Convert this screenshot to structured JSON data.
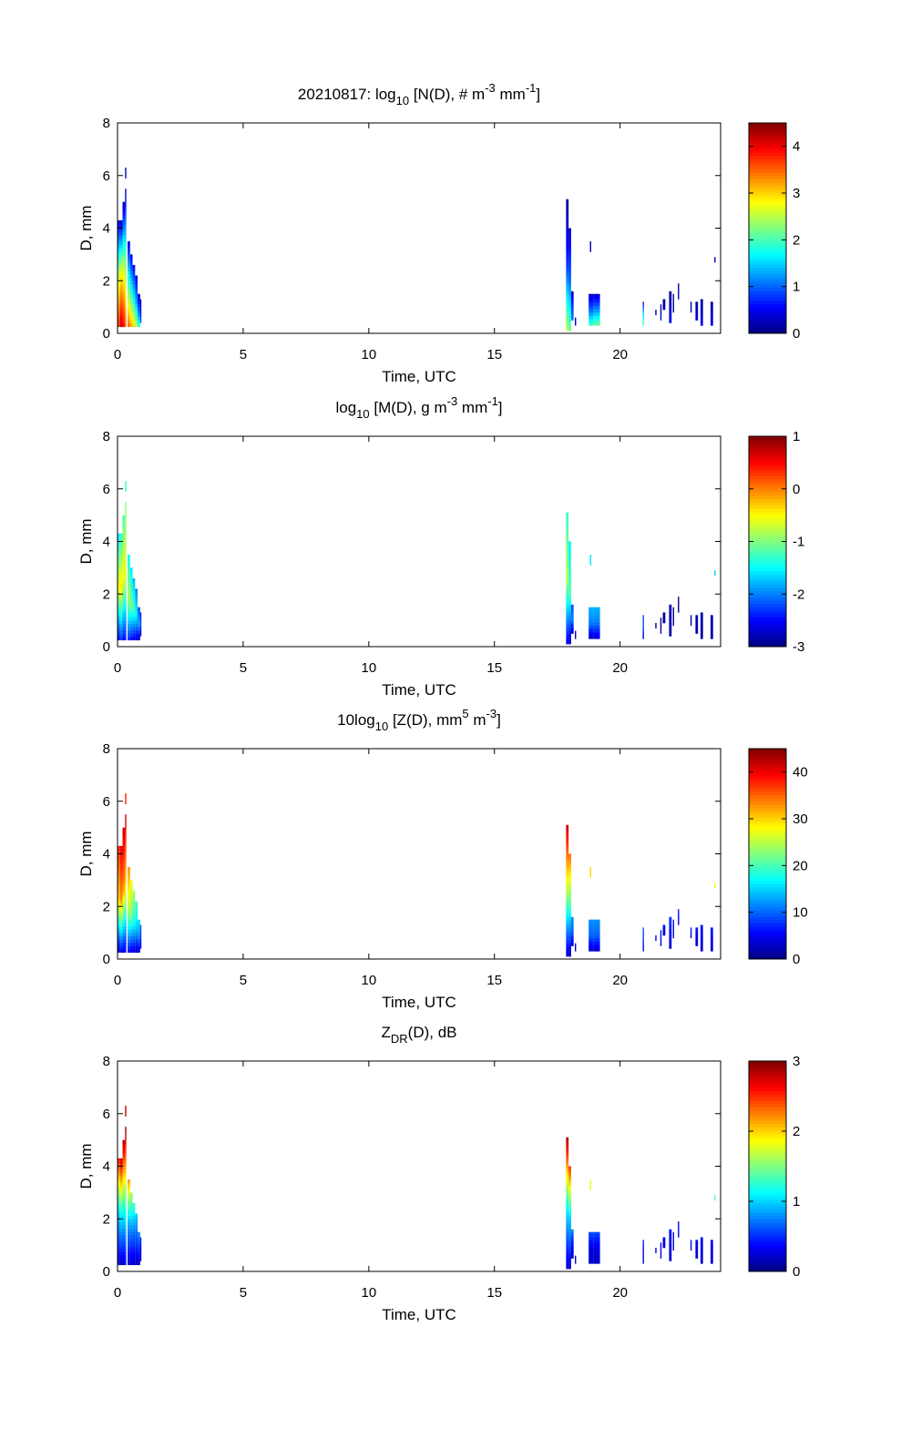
{
  "chart_data": {
    "type": "heatmap",
    "date": "20210817",
    "xlabel": "Time, UTC",
    "ylabel": "D, mm",
    "xlim": [
      0,
      24
    ],
    "ylim": [
      0,
      8
    ],
    "xticks": [
      0,
      5,
      10,
      15,
      20
    ],
    "yticks": [
      0,
      2,
      4,
      6,
      8
    ],
    "bin_size_mm": 0.125,
    "columns": [
      [
        0,
        0.1,
        0.25,
        4.3
      ],
      [
        0.1,
        0.2,
        0.25,
        4.3
      ],
      [
        0.2,
        0.3,
        0.25,
        5.0
      ],
      [
        0.3,
        0.35,
        0.25,
        5.5
      ],
      [
        0.3,
        0.35,
        5.9,
        6.3
      ],
      [
        0.4,
        0.5,
        0.25,
        3.5
      ],
      [
        0.5,
        0.6,
        0.25,
        3.0
      ],
      [
        0.6,
        0.7,
        0.25,
        2.6
      ],
      [
        0.7,
        0.8,
        0.25,
        2.2
      ],
      [
        0.8,
        0.9,
        0.25,
        1.5
      ],
      [
        0.9,
        0.95,
        0.4,
        1.3
      ],
      [
        17.85,
        17.95,
        0.1,
        5.1
      ],
      [
        17.95,
        18.05,
        0.1,
        4.0
      ],
      [
        18.05,
        18.15,
        0.5,
        1.6
      ],
      [
        18.2,
        18.25,
        0.3,
        0.6
      ],
      [
        18.8,
        18.85,
        3.1,
        3.5
      ],
      [
        18.75,
        18.95,
        0.3,
        1.5
      ],
      [
        18.95,
        19.2,
        0.3,
        1.5
      ],
      [
        20.9,
        20.95,
        0.3,
        1.2
      ],
      [
        21.4,
        21.45,
        0.7,
        0.9
      ],
      [
        21.6,
        21.65,
        0.5,
        1.1
      ],
      [
        21.7,
        21.8,
        0.9,
        1.3
      ],
      [
        21.95,
        22.05,
        0.4,
        1.6
      ],
      [
        22.1,
        22.15,
        0.8,
        1.5
      ],
      [
        22.3,
        22.35,
        1.3,
        1.9
      ],
      [
        22.8,
        22.85,
        0.8,
        1.2
      ],
      [
        23.0,
        23.1,
        0.5,
        1.2
      ],
      [
        23.2,
        23.3,
        0.3,
        1.3
      ],
      [
        23.6,
        23.7,
        0.3,
        1.2
      ],
      [
        23.75,
        23.8,
        2.7,
        2.9
      ]
    ],
    "panels": [
      {
        "title": [
          {
            "t": "20210817: log"
          },
          {
            "t": "10",
            "s": "sub"
          },
          {
            "t": " [N(D), # m"
          },
          {
            "t": "-3",
            "s": "sup"
          },
          {
            "t": " mm"
          },
          {
            "t": "-1",
            "s": "sup"
          },
          {
            "t": "]"
          }
        ],
        "clim": [
          0,
          4.5
        ],
        "cbar_ticks": [
          "0",
          "1",
          "2",
          "3",
          "4"
        ],
        "cbar_tick_values": [
          0,
          1,
          2,
          3,
          4
        ],
        "values": [
          [
            3.8,
            2.5,
            0.3
          ],
          [
            4.2,
            2.8,
            0.3
          ],
          [
            3.9,
            2.5,
            0.2
          ],
          [
            3.5,
            2,
            0.2
          ],
          [
            0.2,
            0.2,
            0.2
          ],
          [
            3.5,
            2,
            0.4
          ],
          [
            3.2,
            1.8,
            0.5
          ],
          [
            3,
            1.6,
            0.5
          ],
          [
            2.5,
            1.3,
            0.4
          ],
          [
            2,
            1,
            0.3
          ],
          [
            1,
            0.5,
            0.2
          ],
          [
            2.5,
            0.8,
            0.1
          ],
          [
            2.2,
            1,
            0.3
          ],
          [
            1.2,
            0.8,
            0.3
          ],
          [
            0.5,
            0.3,
            0.2
          ],
          [
            0.2,
            0.2,
            0.2
          ],
          [
            2,
            1,
            0.3
          ],
          [
            2.2,
            1.2,
            0.3
          ],
          [
            2,
            1.5,
            0.5
          ],
          [
            0.3,
            0.2,
            0.1
          ],
          [
            0.4,
            0.2,
            0.1
          ],
          [
            0.3,
            0.2,
            0.1
          ],
          [
            0.5,
            0.3,
            0.1
          ],
          [
            0.3,
            0.2,
            0.1
          ],
          [
            0.3,
            0.2,
            0.1
          ],
          [
            0.3,
            0.2,
            0.1
          ],
          [
            0.5,
            0.3,
            0.1
          ],
          [
            0.5,
            0.3,
            0.1
          ],
          [
            0.5,
            0.3,
            0.1
          ],
          [
            0.3,
            0.3,
            0.3
          ]
        ]
      },
      {
        "title": [
          {
            "t": "log"
          },
          {
            "t": "10",
            "s": "sub"
          },
          {
            "t": " [M(D), g m"
          },
          {
            "t": "-3",
            "s": "sup"
          },
          {
            "t": " mm"
          },
          {
            "t": "-1",
            "s": "sup"
          },
          {
            "t": "]"
          }
        ],
        "clim": [
          -3,
          1
        ],
        "cbar_ticks": [
          "-3",
          "-2",
          "-1",
          "0",
          "1"
        ],
        "cbar_tick_values": [
          -3,
          -2,
          -1,
          0,
          1
        ],
        "values": [
          [
            -2.6,
            -0.5,
            -1.6
          ],
          [
            -2.3,
            -0.4,
            -1.3
          ],
          [
            -2.5,
            -0.5,
            -1.2
          ],
          [
            -2.5,
            -0.6,
            -1.0
          ],
          [
            -1.3,
            -1.3,
            -1.3
          ],
          [
            -2.4,
            -0.8,
            -1.5
          ],
          [
            -2.5,
            -1,
            -1.6
          ],
          [
            -2.6,
            -1.2,
            -1.8
          ],
          [
            -2.7,
            -1.5,
            -2
          ],
          [
            -2.8,
            -1.8,
            -2.2
          ],
          [
            -2.8,
            -2.2,
            -2.5
          ],
          [
            -2.6,
            -0.8,
            -1.3
          ],
          [
            -2.8,
            -1.2,
            -1.5
          ],
          [
            -2.8,
            -2,
            -2.2
          ],
          [
            -2.9,
            -2.8,
            -2.8
          ],
          [
            -1.6,
            -1.6,
            -1.6
          ],
          [
            -2.8,
            -2,
            -1.8
          ],
          [
            -2.7,
            -2,
            -1.8
          ],
          [
            -2.8,
            -2.2,
            -2.2
          ],
          [
            -2.9,
            -2.9,
            -2.9
          ],
          [
            -2.9,
            -2.9,
            -2.9
          ],
          [
            -2.9,
            -2.9,
            -2.9
          ],
          [
            -2.9,
            -2.8,
            -2.8
          ],
          [
            -2.9,
            -2.9,
            -2.9
          ],
          [
            -2.9,
            -2.9,
            -2.9
          ],
          [
            -2.9,
            -2.9,
            -2.9
          ],
          [
            -2.9,
            -2.8,
            -2.8
          ],
          [
            -2.9,
            -2.8,
            -2.8
          ],
          [
            -2.9,
            -2.8,
            -2.8
          ],
          [
            -1.7,
            -1.7,
            -1.7
          ]
        ]
      },
      {
        "title": [
          {
            "t": "10log"
          },
          {
            "t": "10",
            "s": "sub"
          },
          {
            "t": " [Z(D),  mm"
          },
          {
            "t": "5",
            "s": "sup"
          },
          {
            "t": " m"
          },
          {
            "t": "-3",
            "s": "sup"
          },
          {
            "t": "]"
          }
        ],
        "clim": [
          0,
          45
        ],
        "cbar_ticks": [
          "0",
          "10",
          "20",
          "30",
          "40"
        ],
        "cbar_tick_values": [
          0,
          10,
          20,
          30,
          40
        ],
        "values": [
          [
            2,
            30,
            38
          ],
          [
            5,
            33,
            40
          ],
          [
            4,
            32,
            42
          ],
          [
            3,
            30,
            42
          ],
          [
            38,
            38,
            38
          ],
          [
            5,
            25,
            33
          ],
          [
            4,
            22,
            28
          ],
          [
            4,
            18,
            25
          ],
          [
            3,
            15,
            20
          ],
          [
            3,
            12,
            16
          ],
          [
            3,
            8,
            10
          ],
          [
            3,
            25,
            42
          ],
          [
            2,
            20,
            35
          ],
          [
            3,
            10,
            12
          ],
          [
            3,
            4,
            4
          ],
          [
            30,
            30,
            30
          ],
          [
            3,
            10,
            12
          ],
          [
            3,
            10,
            12
          ],
          [
            3,
            8,
            10
          ],
          [
            3,
            5,
            7
          ],
          [
            3,
            5,
            7
          ],
          [
            3,
            5,
            7
          ],
          [
            3,
            6,
            8
          ],
          [
            3,
            5,
            7
          ],
          [
            3,
            5,
            7
          ],
          [
            3,
            5,
            7
          ],
          [
            3,
            5,
            7
          ],
          [
            3,
            5,
            7
          ],
          [
            3,
            5,
            7
          ],
          [
            28,
            28,
            28
          ]
        ]
      },
      {
        "title": [
          {
            "t": "Z"
          },
          {
            "t": "DR",
            "s": "sub"
          },
          {
            "t": "(D), dB"
          }
        ],
        "clim": [
          0,
          3
        ],
        "cbar_ticks": [
          "0",
          "1",
          "2",
          "3"
        ],
        "cbar_tick_values": [
          0,
          1,
          2,
          3
        ],
        "values": [
          [
            0.2,
            1.0,
            2.6
          ],
          [
            0.2,
            1.2,
            2.8
          ],
          [
            0.2,
            1.3,
            2.9
          ],
          [
            0.3,
            1.5,
            3
          ],
          [
            2.8,
            2.8,
            2.8
          ],
          [
            0.2,
            0.9,
            2.2
          ],
          [
            0.2,
            0.8,
            1.6
          ],
          [
            0.2,
            0.7,
            1.3
          ],
          [
            0.2,
            0.6,
            1.0
          ],
          [
            0.2,
            0.5,
            0.8
          ],
          [
            0.2,
            0.3,
            0.5
          ],
          [
            0.2,
            1.2,
            2.9
          ],
          [
            0.2,
            1.0,
            2.5
          ],
          [
            0.2,
            0.4,
            0.8
          ],
          [
            0.2,
            0.2,
            0.2
          ],
          [
            1.8,
            1.8,
            1.8
          ],
          [
            0.2,
            0.3,
            0.6
          ],
          [
            0.2,
            0.3,
            0.6
          ],
          [
            0.2,
            0.3,
            0.5
          ],
          [
            0.2,
            0.3,
            0.4
          ],
          [
            0.2,
            0.3,
            0.4
          ],
          [
            0.2,
            0.3,
            0.4
          ],
          [
            0.2,
            0.3,
            0.4
          ],
          [
            0.2,
            0.3,
            0.4
          ],
          [
            0.2,
            0.3,
            0.4
          ],
          [
            0.2,
            0.3,
            0.4
          ],
          [
            0.2,
            0.3,
            0.4
          ],
          [
            0.2,
            0.3,
            0.4
          ],
          [
            0.2,
            0.3,
            0.4
          ],
          [
            1.4,
            1.4,
            1.4
          ]
        ]
      }
    ]
  }
}
